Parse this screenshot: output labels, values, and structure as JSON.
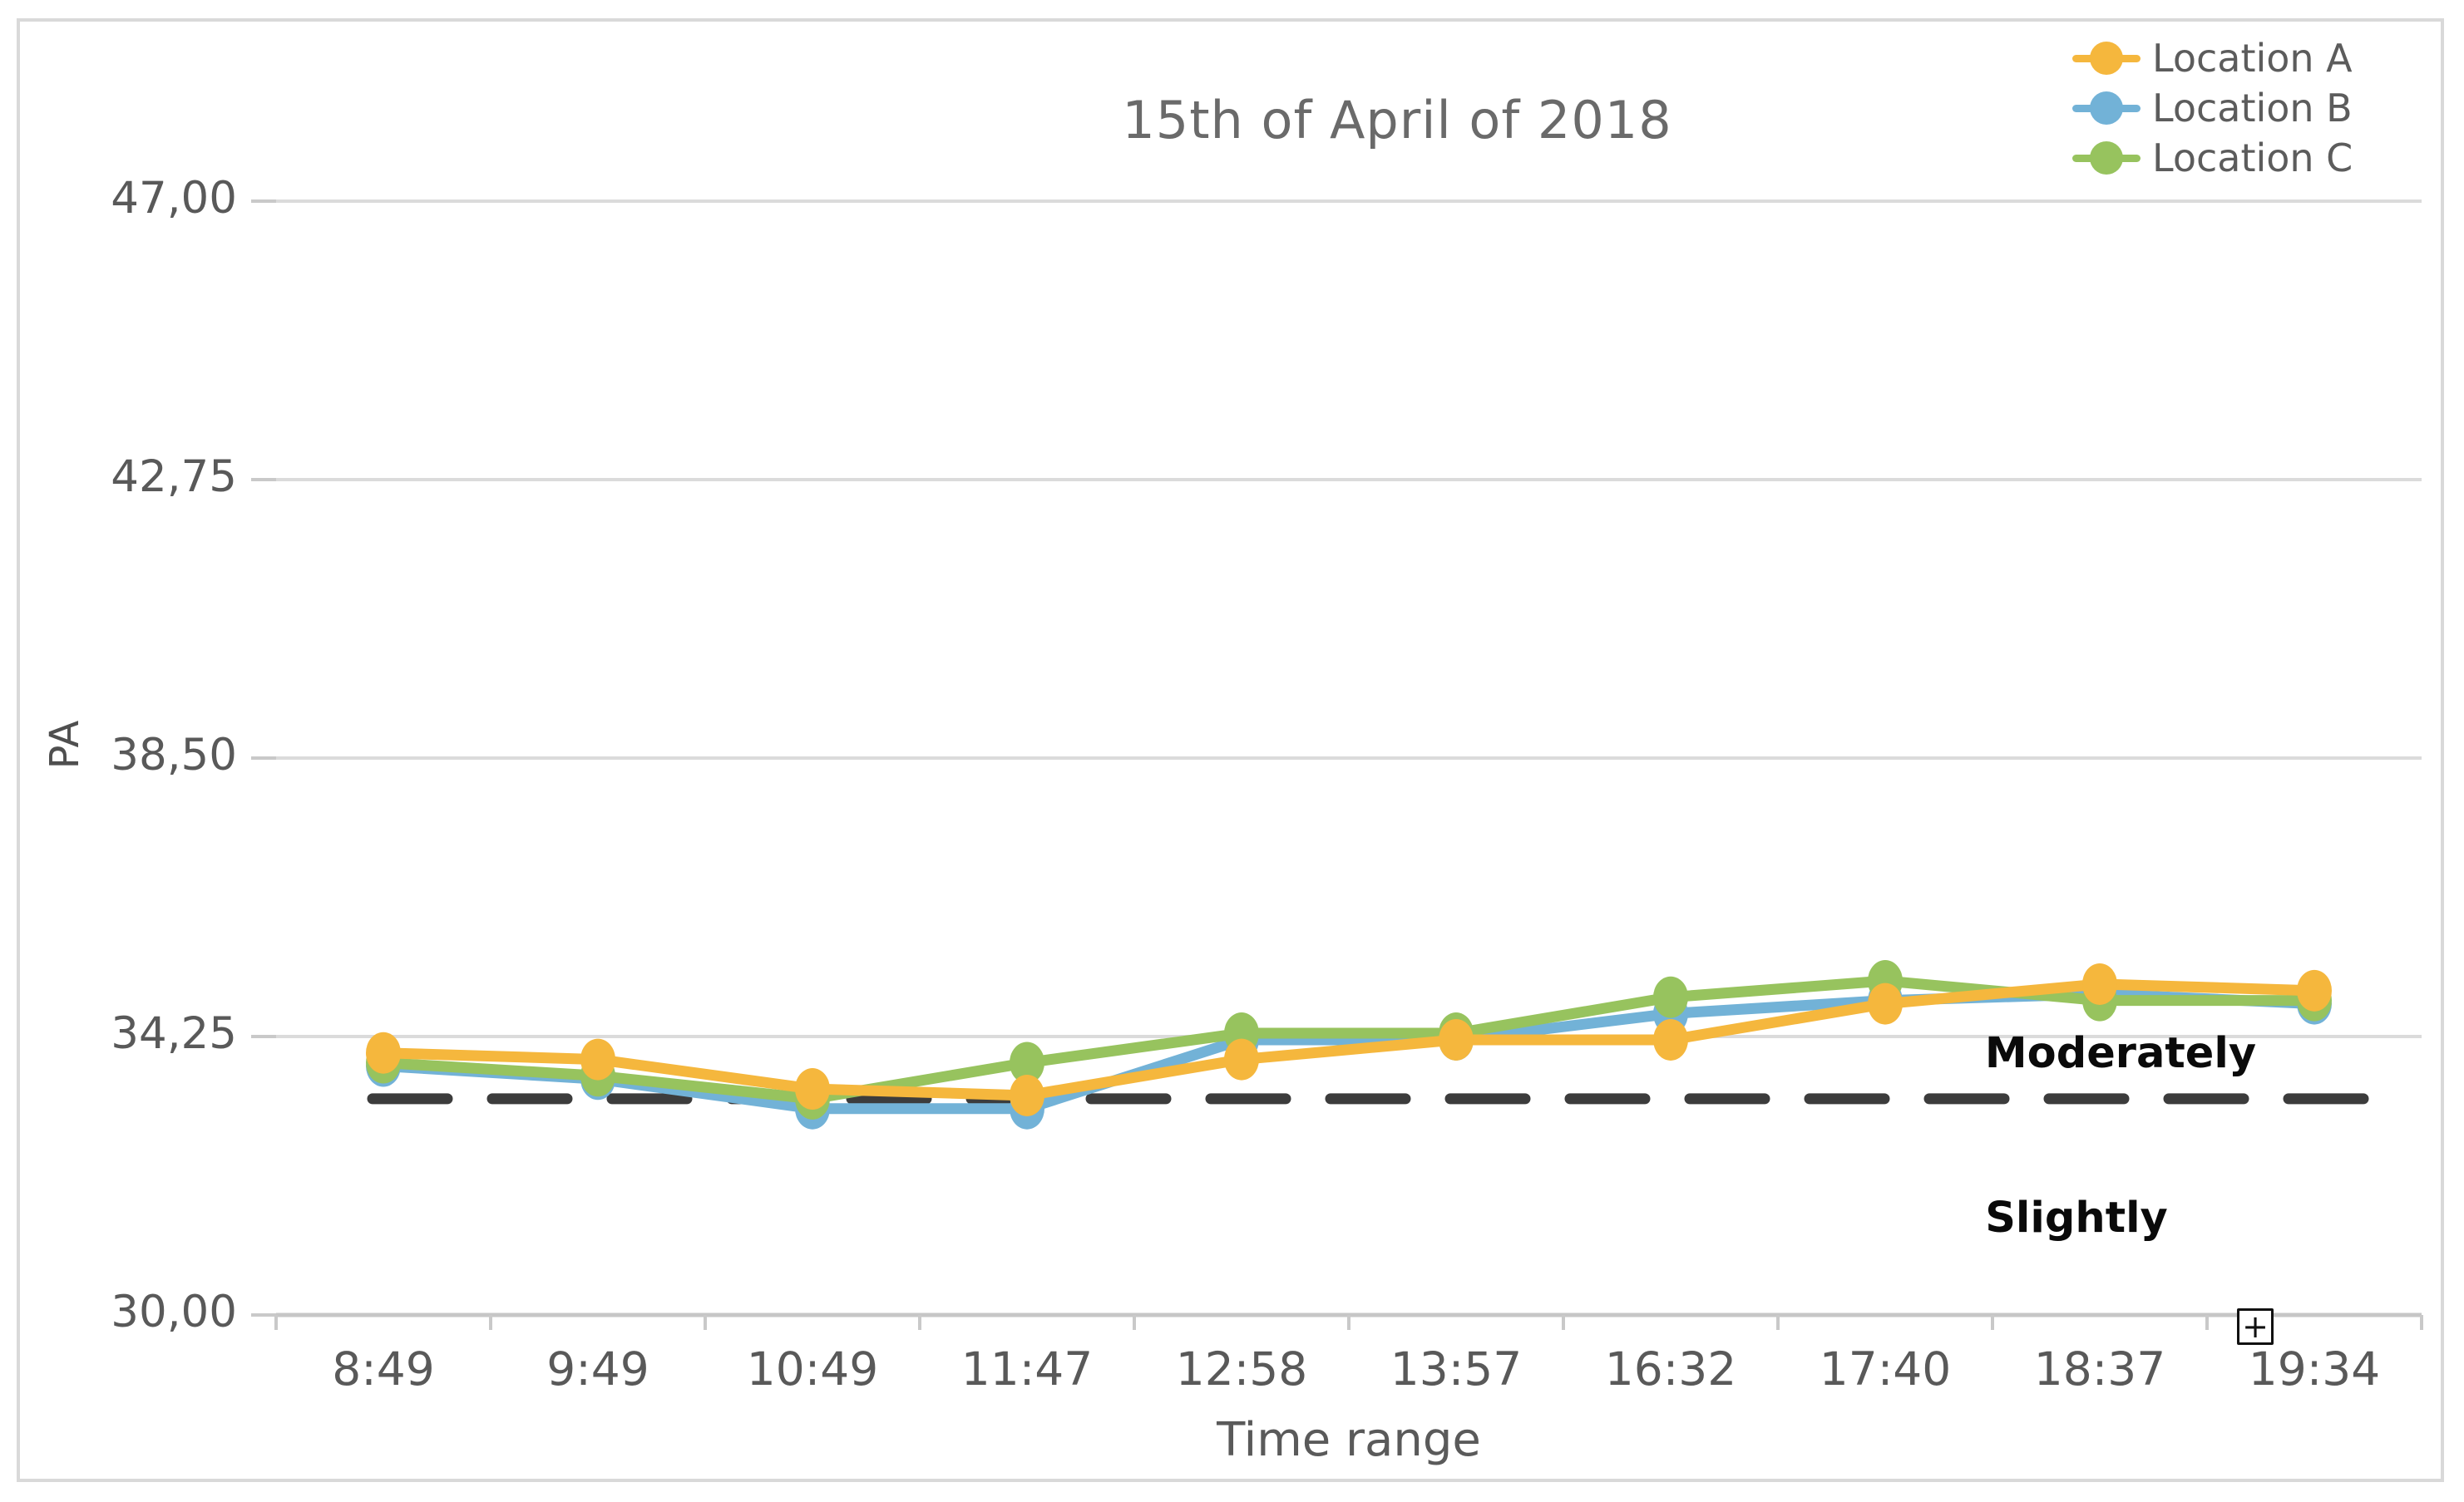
{
  "title": "15th of April of 2018",
  "controls": {
    "plus_button_label": "+"
  },
  "legend": {
    "position": "top-right",
    "items": [
      {
        "label": "Location A",
        "color": "#f5b73d"
      },
      {
        "label": "Location B",
        "color": "#72b2d7"
      },
      {
        "label": "Location C",
        "color": "#97c35e"
      }
    ]
  },
  "chart_data": {
    "type": "line",
    "title": "15th of April of 2018",
    "xlabel": "Time range",
    "ylabel": "PA",
    "categories": [
      "8:49",
      "9:49",
      "10:49",
      "11:47",
      "12:58",
      "13:57",
      "16:32",
      "17:40",
      "18:37",
      "19:34"
    ],
    "y_tick_labels": [
      "47,00",
      "42,75",
      "38,50",
      "34,25",
      "30,00"
    ],
    "y_tick_values": [
      47,
      42.75,
      38.5,
      34.25,
      30
    ],
    "ylim": [
      30,
      47
    ],
    "grid": "horizontal",
    "legend_position": "top-right",
    "series": [
      {
        "name": "Location A",
        "color": "#f5b73d",
        "values": [
          34.0,
          33.9,
          33.45,
          33.35,
          33.9,
          34.2,
          34.2,
          34.75,
          35.05,
          34.95
        ]
      },
      {
        "name": "Location B",
        "color": "#72b2d7",
        "values": [
          33.8,
          33.6,
          33.15,
          33.15,
          34.2,
          34.2,
          34.6,
          34.8,
          34.9,
          34.75
        ]
      },
      {
        "name": "Location C",
        "color": "#97c35e",
        "values": [
          33.85,
          33.65,
          33.3,
          33.85,
          34.3,
          34.3,
          34.85,
          35.1,
          34.8,
          34.8
        ]
      }
    ],
    "threshold_line": {
      "value": 33.3,
      "style": "dashed",
      "color": "#3c3c3c"
    },
    "annotations": [
      {
        "text": "Moderately",
        "position": "above_threshold"
      },
      {
        "text": "Slightly",
        "position": "below_threshold"
      }
    ]
  }
}
